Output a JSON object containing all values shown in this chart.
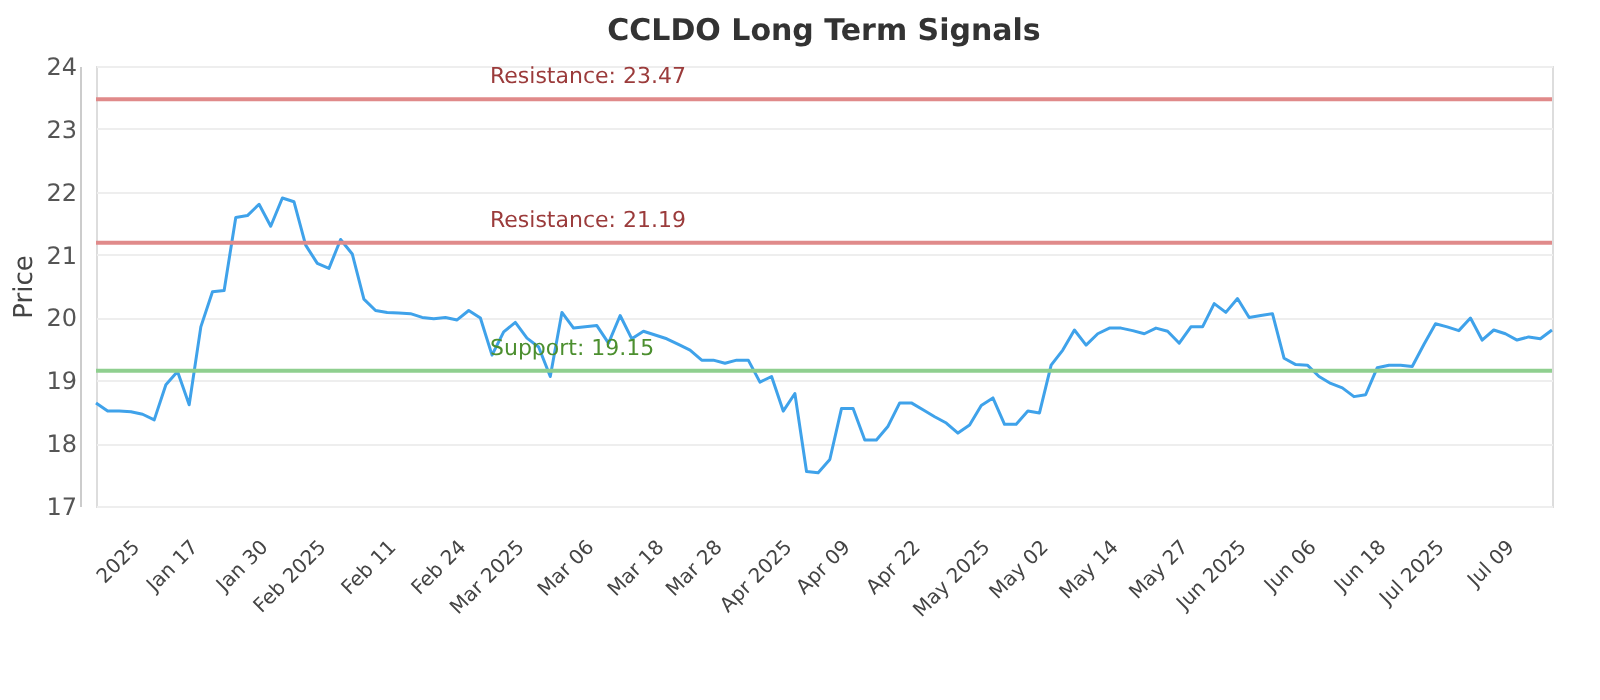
{
  "chart_data": {
    "type": "line",
    "title": "CCLDO Long Term Signals",
    "ylabel": "Price",
    "categories": [
      null,
      null,
      null,
      null,
      "2025",
      null,
      null,
      null,
      null,
      "Jan 17",
      null,
      null,
      null,
      null,
      null,
      "Jan 30",
      null,
      null,
      null,
      null,
      "Feb 2025",
      null,
      null,
      null,
      null,
      null,
      "Feb 11",
      null,
      null,
      null,
      null,
      null,
      "Feb 24",
      null,
      null,
      null,
      null,
      "Mar 2025",
      null,
      null,
      null,
      null,
      null,
      "Mar 06",
      null,
      null,
      null,
      null,
      null,
      "Mar 18",
      null,
      null,
      null,
      null,
      "Mar 28",
      null,
      null,
      null,
      null,
      null,
      "Apr 2025",
      null,
      null,
      null,
      null,
      "Apr 09",
      null,
      null,
      null,
      null,
      null,
      "Apr 22",
      null,
      null,
      null,
      null,
      null,
      "May 2025",
      null,
      null,
      null,
      null,
      "May 02",
      null,
      null,
      null,
      null,
      null,
      "May 14",
      null,
      null,
      null,
      null,
      null,
      "May 27",
      null,
      null,
      null,
      null,
      "Jun 2025",
      null,
      null,
      null,
      null,
      null,
      "Jun 06",
      null,
      null,
      null,
      null,
      null,
      "Jun 18",
      null,
      null,
      null,
      null,
      "Jul 2025",
      null,
      null,
      null,
      null,
      null,
      "Jul 09",
      null,
      null,
      null
    ],
    "series": [
      {
        "color": "#3fa2ea",
        "values": [
          18.64,
          18.51,
          18.51,
          18.5,
          18.46,
          18.37,
          18.93,
          19.14,
          18.61,
          19.85,
          20.41,
          20.43,
          21.59,
          21.62,
          21.8,
          21.45,
          21.9,
          21.84,
          21.15,
          20.86,
          20.78,
          21.24,
          21.01,
          20.29,
          20.11,
          20.08,
          20.07,
          20.06,
          20.0,
          19.98,
          20.0,
          19.96,
          20.11,
          19.99,
          19.4,
          19.77,
          19.92,
          19.67,
          19.53,
          19.06,
          20.08,
          19.83,
          19.85,
          19.87,
          19.59,
          20.03,
          19.66,
          19.78,
          19.72,
          19.66,
          19.57,
          19.48,
          19.32,
          19.32,
          19.27,
          19.32,
          19.32,
          18.97,
          19.06,
          18.51,
          18.79,
          17.55,
          17.53,
          17.74,
          18.55,
          18.55,
          18.05,
          18.05,
          18.27,
          18.64,
          18.64,
          18.53,
          18.42,
          18.32,
          18.16,
          18.29,
          18.6,
          18.72,
          18.3,
          18.3,
          18.51,
          18.48,
          19.24,
          19.48,
          19.8,
          19.56,
          19.74,
          19.83,
          19.83,
          19.79,
          19.74,
          19.83,
          19.78,
          19.59,
          19.85,
          19.85,
          20.22,
          20.08,
          20.3,
          20.0,
          20.03,
          20.06,
          19.35,
          19.25,
          19.24,
          19.06,
          18.95,
          18.88,
          18.74,
          18.77,
          19.2,
          19.24,
          19.24,
          19.22,
          19.57,
          19.9,
          19.85,
          19.79,
          19.99,
          19.64,
          19.8,
          19.74,
          19.64,
          19.69,
          19.66,
          19.8
        ]
      }
    ],
    "ylim": [
      17,
      24
    ],
    "yticks": [
      17,
      18,
      19,
      20,
      21,
      22,
      23,
      24
    ],
    "grid": "y",
    "marker": "none",
    "line_style": "solid",
    "ref_lines": [
      {
        "axis": "y",
        "value": 23.47,
        "label": "Resistance: 23.47",
        "color": "#e08a8a"
      },
      {
        "axis": "y",
        "value": 21.19,
        "label": "Resistance: 21.19",
        "color": "#e08a8a"
      },
      {
        "axis": "y",
        "value": 19.15,
        "label": "Support: 19.15",
        "color": "#8fcf8f"
      }
    ]
  }
}
